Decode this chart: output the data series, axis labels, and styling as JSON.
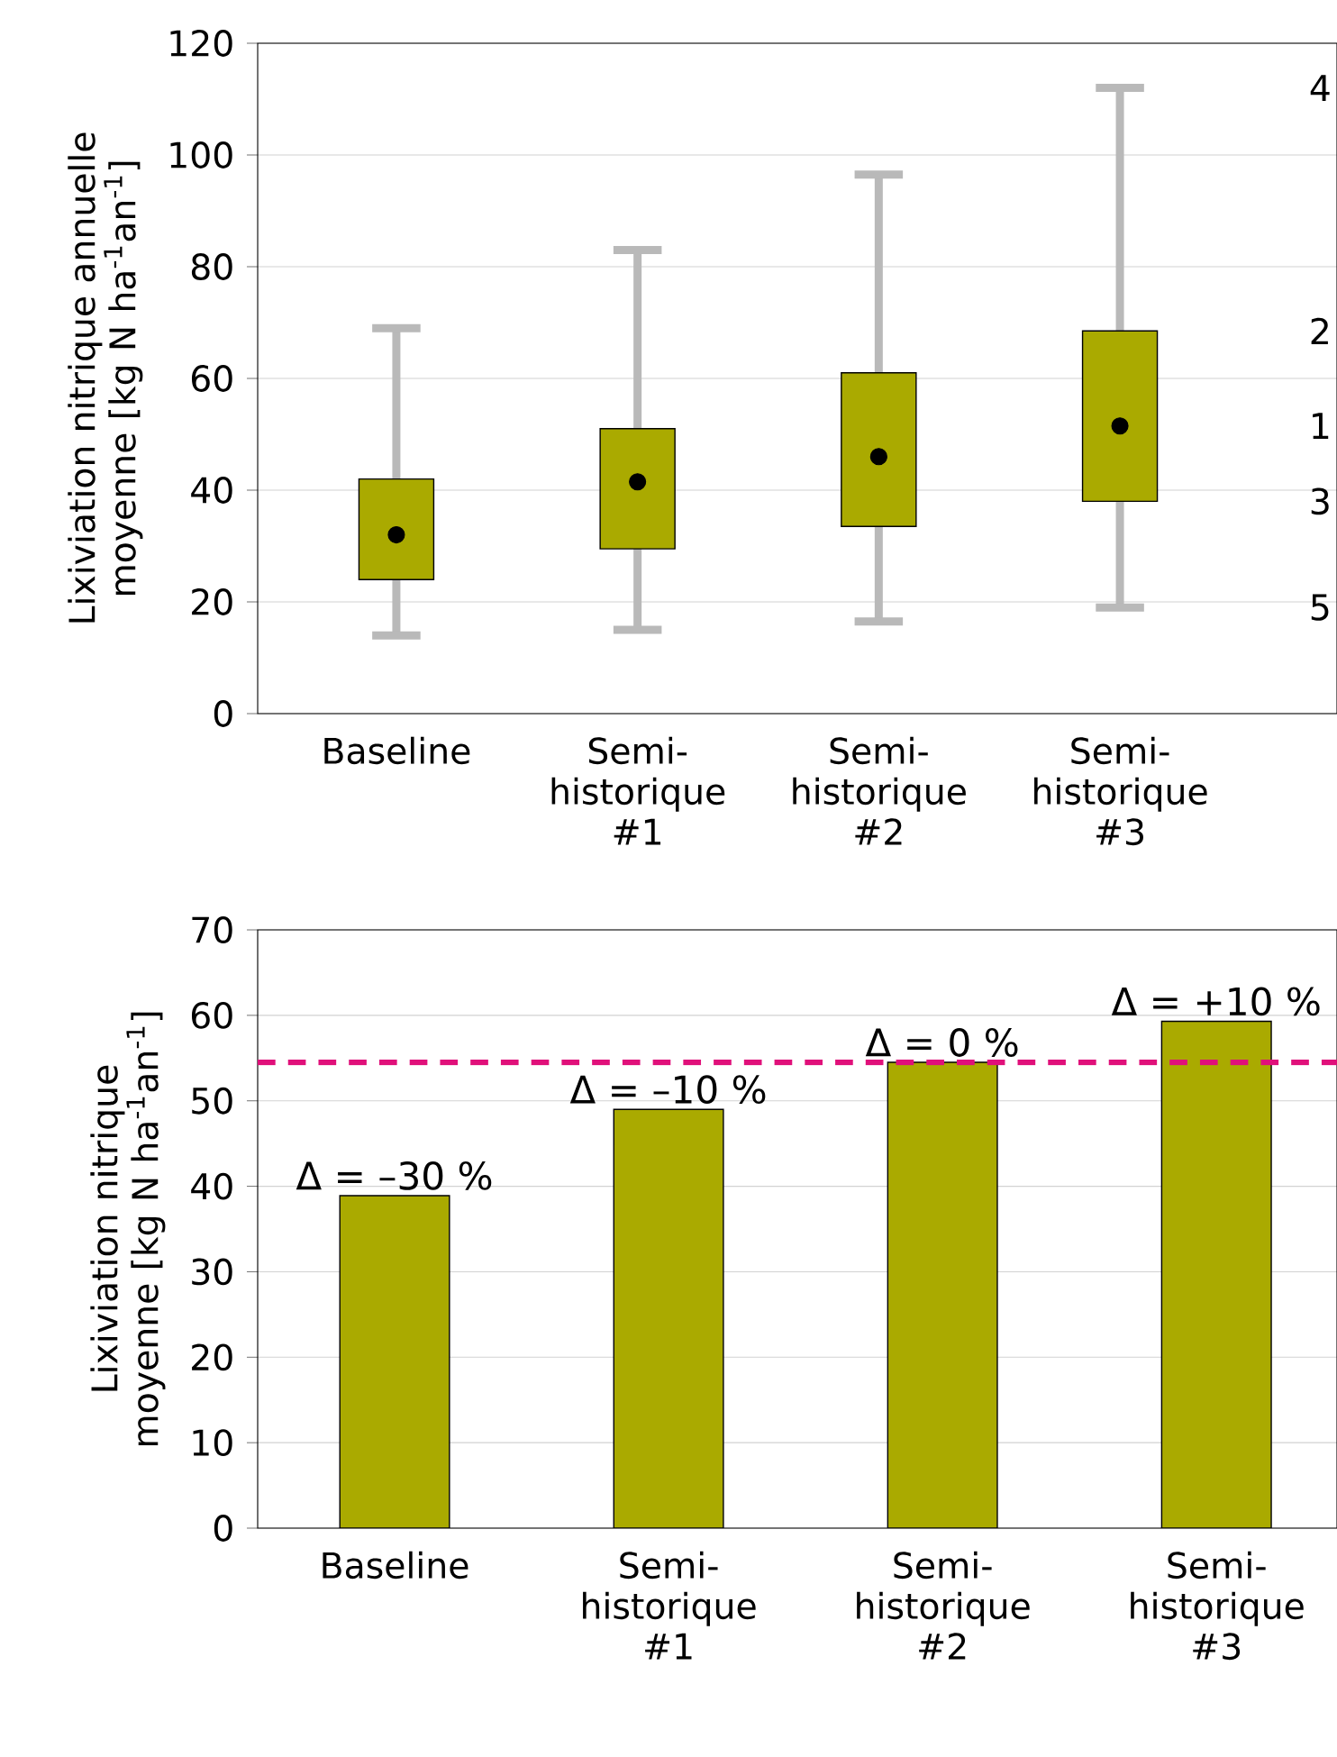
{
  "chart_data": [
    {
      "type": "box",
      "ylabel": "Lixiviation nitrique annuelle moyenne [kg N ha$^{-1}$an$^{-1}$]",
      "categories": [
        "Baseline",
        "Semi-historique #1",
        "Semi-historique #2",
        "Semi-historique #3"
      ],
      "color": "#aaaa00",
      "boxes": [
        {
          "low": 14,
          "q1": 24,
          "median": 32,
          "q3": 42,
          "high": 69
        },
        {
          "low": 15,
          "q1": 29.5,
          "median": 41.5,
          "q3": 51,
          "high": 83
        },
        {
          "low": 16.5,
          "q1": 33.5,
          "median": 46,
          "q3": 61,
          "high": 96.5
        },
        {
          "low": 19,
          "q1": 38,
          "median": 51.5,
          "q3": 68.5,
          "high": 112
        }
      ],
      "ylim": [
        0,
        120
      ],
      "yticks": [
        0,
        20,
        40,
        60,
        80,
        100,
        120
      ],
      "grid": "y",
      "annotations": [
        "4",
        "2",
        "1",
        "3",
        "5"
      ]
    },
    {
      "type": "bar",
      "ylabel": "Lixiviation nitrique moyenne [kg N ha$^{-1}$an$^{-1}$]",
      "categories": [
        "Baseline",
        "Semi-historique #1",
        "Semi-historique #2",
        "Semi-historique #3"
      ],
      "values": [
        38.9,
        49,
        54.5,
        59.3
      ],
      "color": "#aaaa00",
      "ylim": [
        0,
        70
      ],
      "yticks": [
        0,
        10,
        20,
        30,
        40,
        50,
        60,
        70
      ],
      "grid": "y",
      "ref_lines": [
        {
          "axis": "y",
          "value": 54.5,
          "color": "#e0107a",
          "line_style": "dashed"
        }
      ],
      "annotations": [
        {
          "text": "Δ = –30 %",
          "x": "Baseline",
          "y": 38.9
        },
        {
          "text": "Δ = –10 %",
          "x": "Semi-historique #1",
          "y": 49
        },
        {
          "text": "Δ = 0 %",
          "x": "Semi-historique #2",
          "y": 54.5
        },
        {
          "text": "Δ = +10 %",
          "x": "Semi-historique #3",
          "y": 59.3
        }
      ]
    }
  ]
}
